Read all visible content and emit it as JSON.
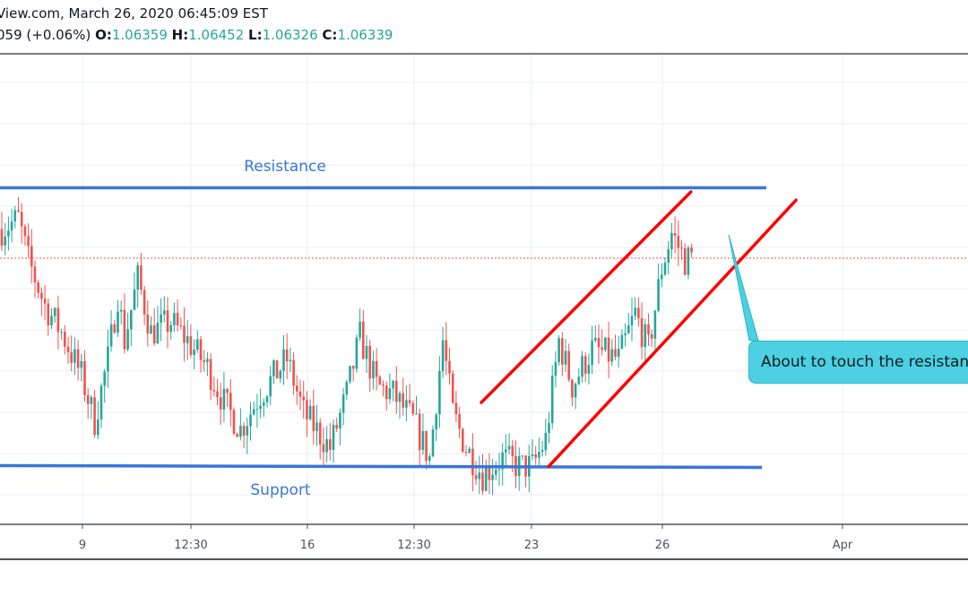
{
  "header": {
    "line1": "View.com, March 26, 2020 06:45:09 EST",
    "change": "059 (+0.06%)",
    "o_label": "O:",
    "o": "1.06359",
    "h_label": "H:",
    "h": "1.06452",
    "l_label": "L:",
    "l": "1.06326",
    "c_label": "C:",
    "c": "1.06339"
  },
  "chart_data": {
    "type": "candlestick",
    "ylim": [
      1.0505,
      1.0732
    ],
    "grid": true,
    "x_tick_labels": [
      "9",
      "12:30",
      "16",
      "12:30",
      "23",
      "26",
      "Apr"
    ],
    "last_price": 1.06339,
    "close_path": [
      [
        0,
        1.0648
      ],
      [
        5,
        1.0653
      ],
      [
        8,
        1.0633
      ],
      [
        13,
        1.0611
      ],
      [
        18,
        1.0598
      ],
      [
        24,
        1.0577
      ],
      [
        28,
        1.0555
      ],
      [
        32,
        1.0585
      ],
      [
        35,
        1.0616
      ],
      [
        37,
        1.0594
      ],
      [
        41,
        1.0624
      ],
      [
        45,
        1.0598
      ],
      [
        51,
        1.0603
      ],
      [
        56,
        1.0594
      ],
      [
        62,
        1.0581
      ],
      [
        67,
        1.0564
      ],
      [
        72,
        1.0551
      ],
      [
        78,
        1.0568
      ],
      [
        86,
        1.0585
      ],
      [
        91,
        1.0559
      ],
      [
        99,
        1.0542
      ],
      [
        104,
        1.0568
      ],
      [
        108,
        1.0596
      ],
      [
        113,
        1.0572
      ],
      [
        118,
        1.0568
      ],
      [
        124,
        1.0555
      ],
      [
        129,
        1.0537
      ],
      [
        133,
        1.0594
      ],
      [
        136,
        1.0559
      ],
      [
        140,
        1.0542
      ],
      [
        145,
        1.0529
      ],
      [
        151,
        1.0537
      ],
      [
        156,
        1.0533
      ],
      [
        160,
        1.0533
      ],
      [
        164,
        1.0546
      ],
      [
        168,
        1.0594
      ],
      [
        172,
        1.0572
      ],
      [
        178,
        1.059
      ],
      [
        186,
        1.0585
      ],
      [
        191,
        1.0607
      ],
      [
        195,
        1.059
      ],
      [
        199,
        1.0629
      ],
      [
        202,
        1.0646
      ],
      [
        206,
        1.0633
      ],
      [
        208,
        1.0634
      ]
    ],
    "colors": {
      "up": "#26a69a",
      "down": "#ef5350",
      "level": "#3a76d8",
      "channel": "#ff0000",
      "callout": "#4dd0e1"
    },
    "drawings": {
      "resistance": {
        "label": "Resistance",
        "price": 1.0668
      },
      "support": {
        "label": "Support",
        "price": 1.0533
      },
      "channel_upper": {
        "from": [
          144.6,
          1.0564
        ],
        "to": [
          207.8,
          1.0666
        ]
      },
      "channel_lower": {
        "from": [
          164.9,
          1.0533
        ],
        "to": [
          239.5,
          1.0662
        ]
      },
      "callout": {
        "text": "About to touch the resistance"
      }
    }
  }
}
